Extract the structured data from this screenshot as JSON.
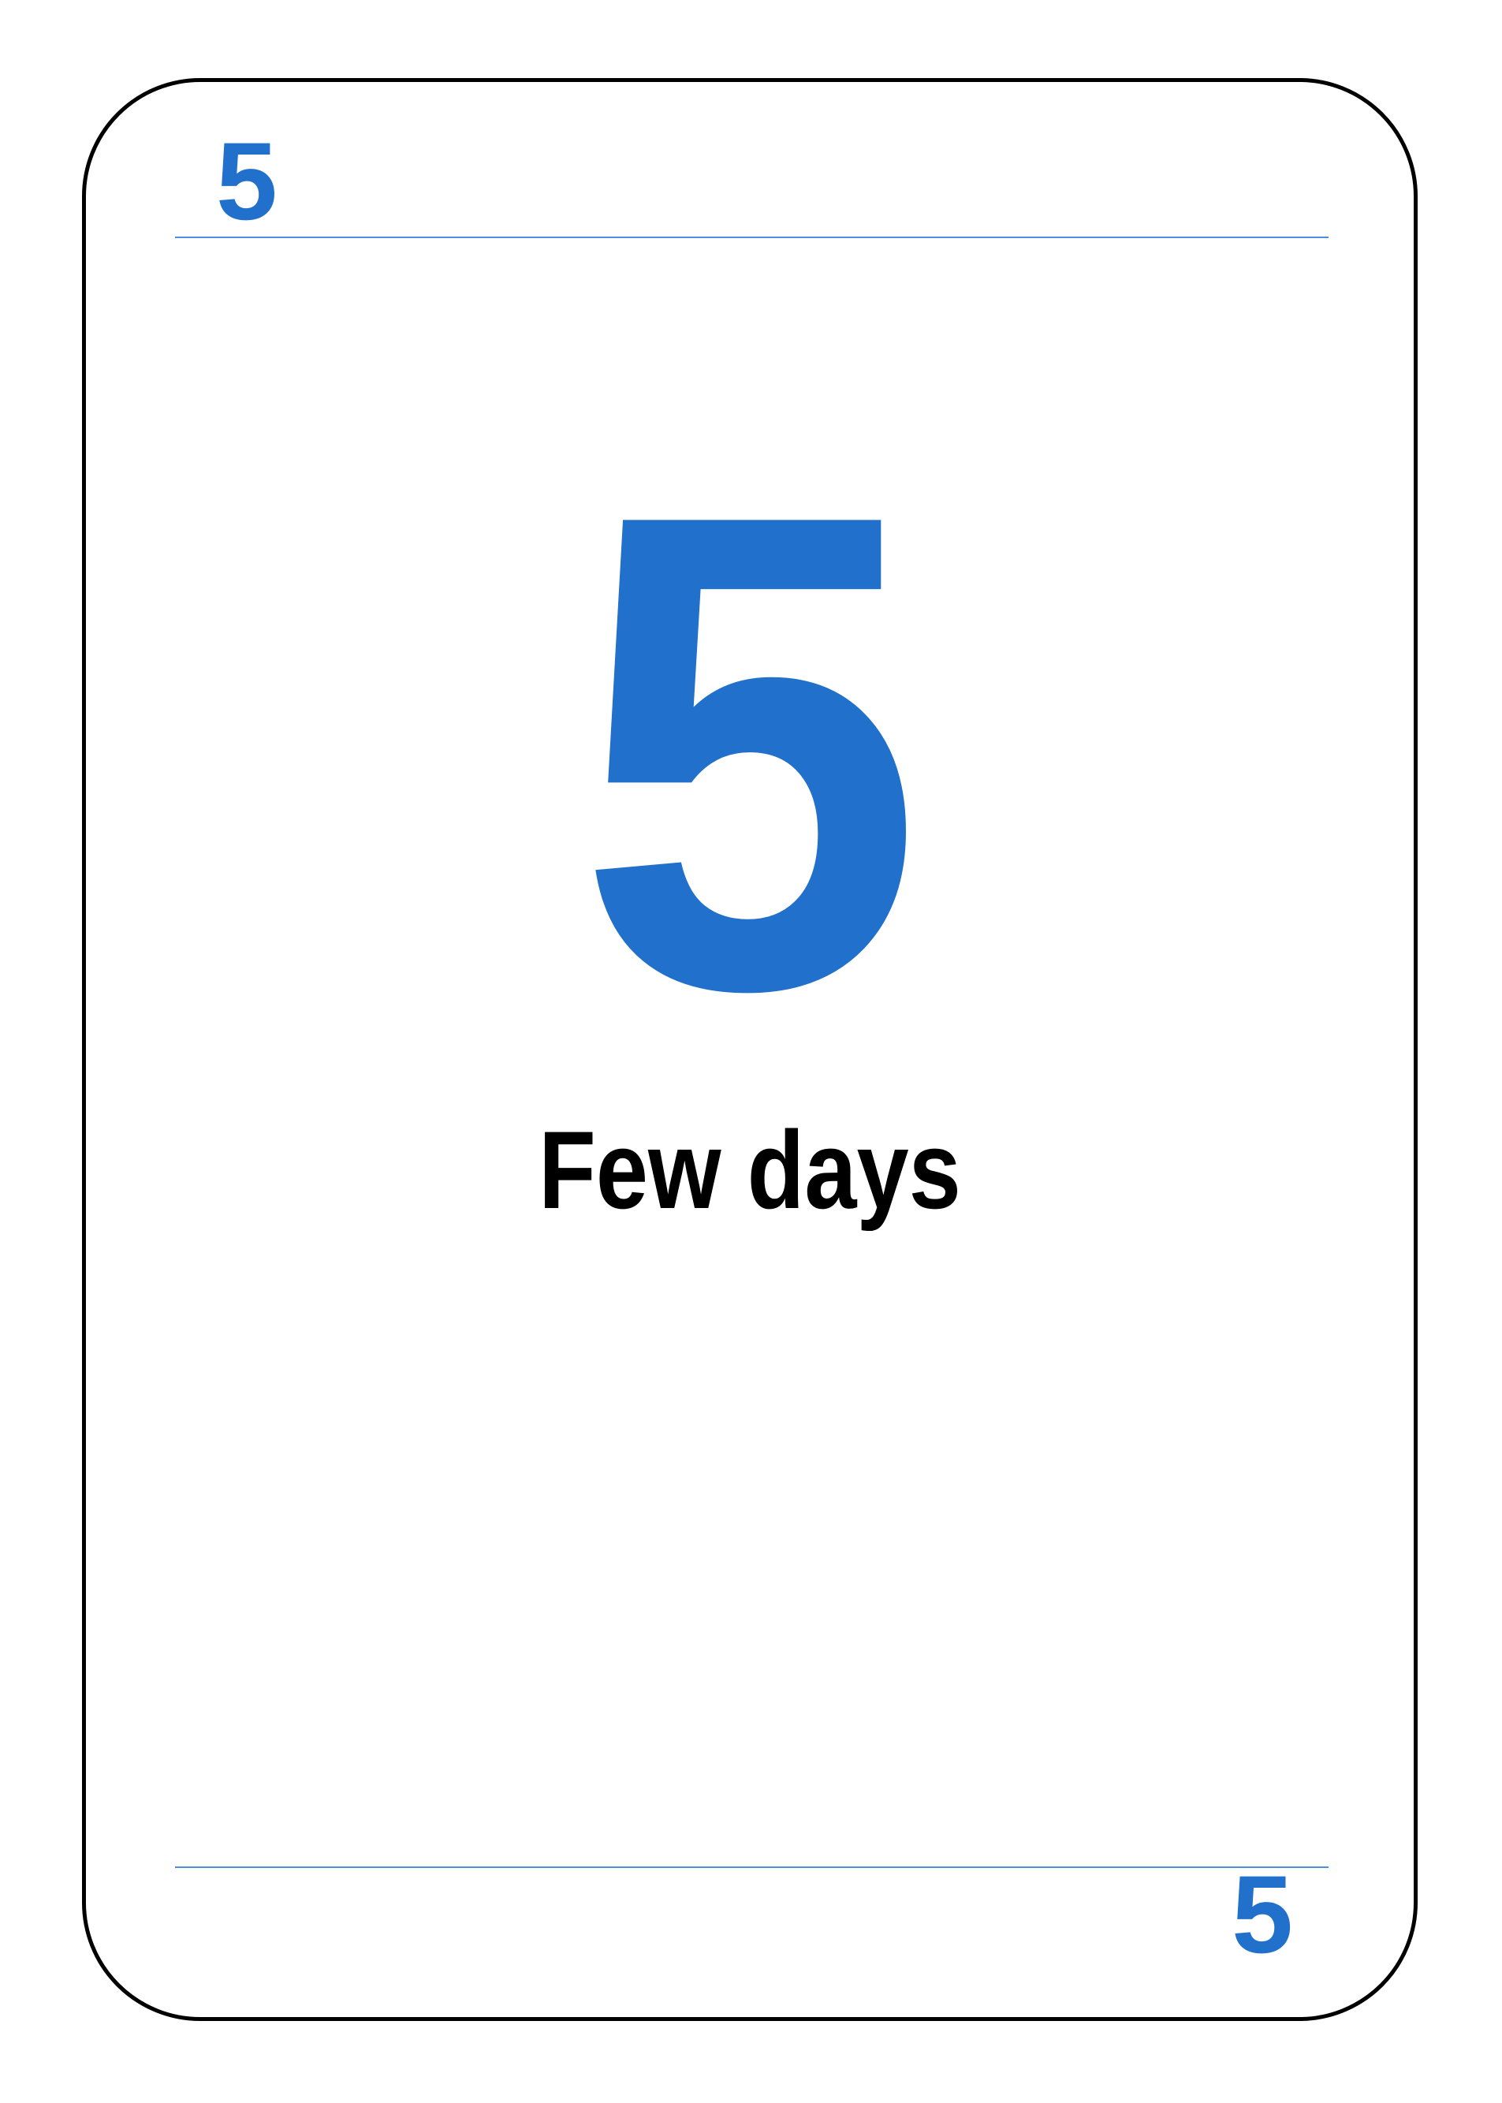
{
  "card": {
    "value": "5",
    "corner_top": "5",
    "corner_bottom": "5",
    "caption": "Few days"
  },
  "colors": {
    "accent": "#2070cc",
    "rule": "#4a8ee0",
    "border": "#000000",
    "text": "#000000"
  }
}
